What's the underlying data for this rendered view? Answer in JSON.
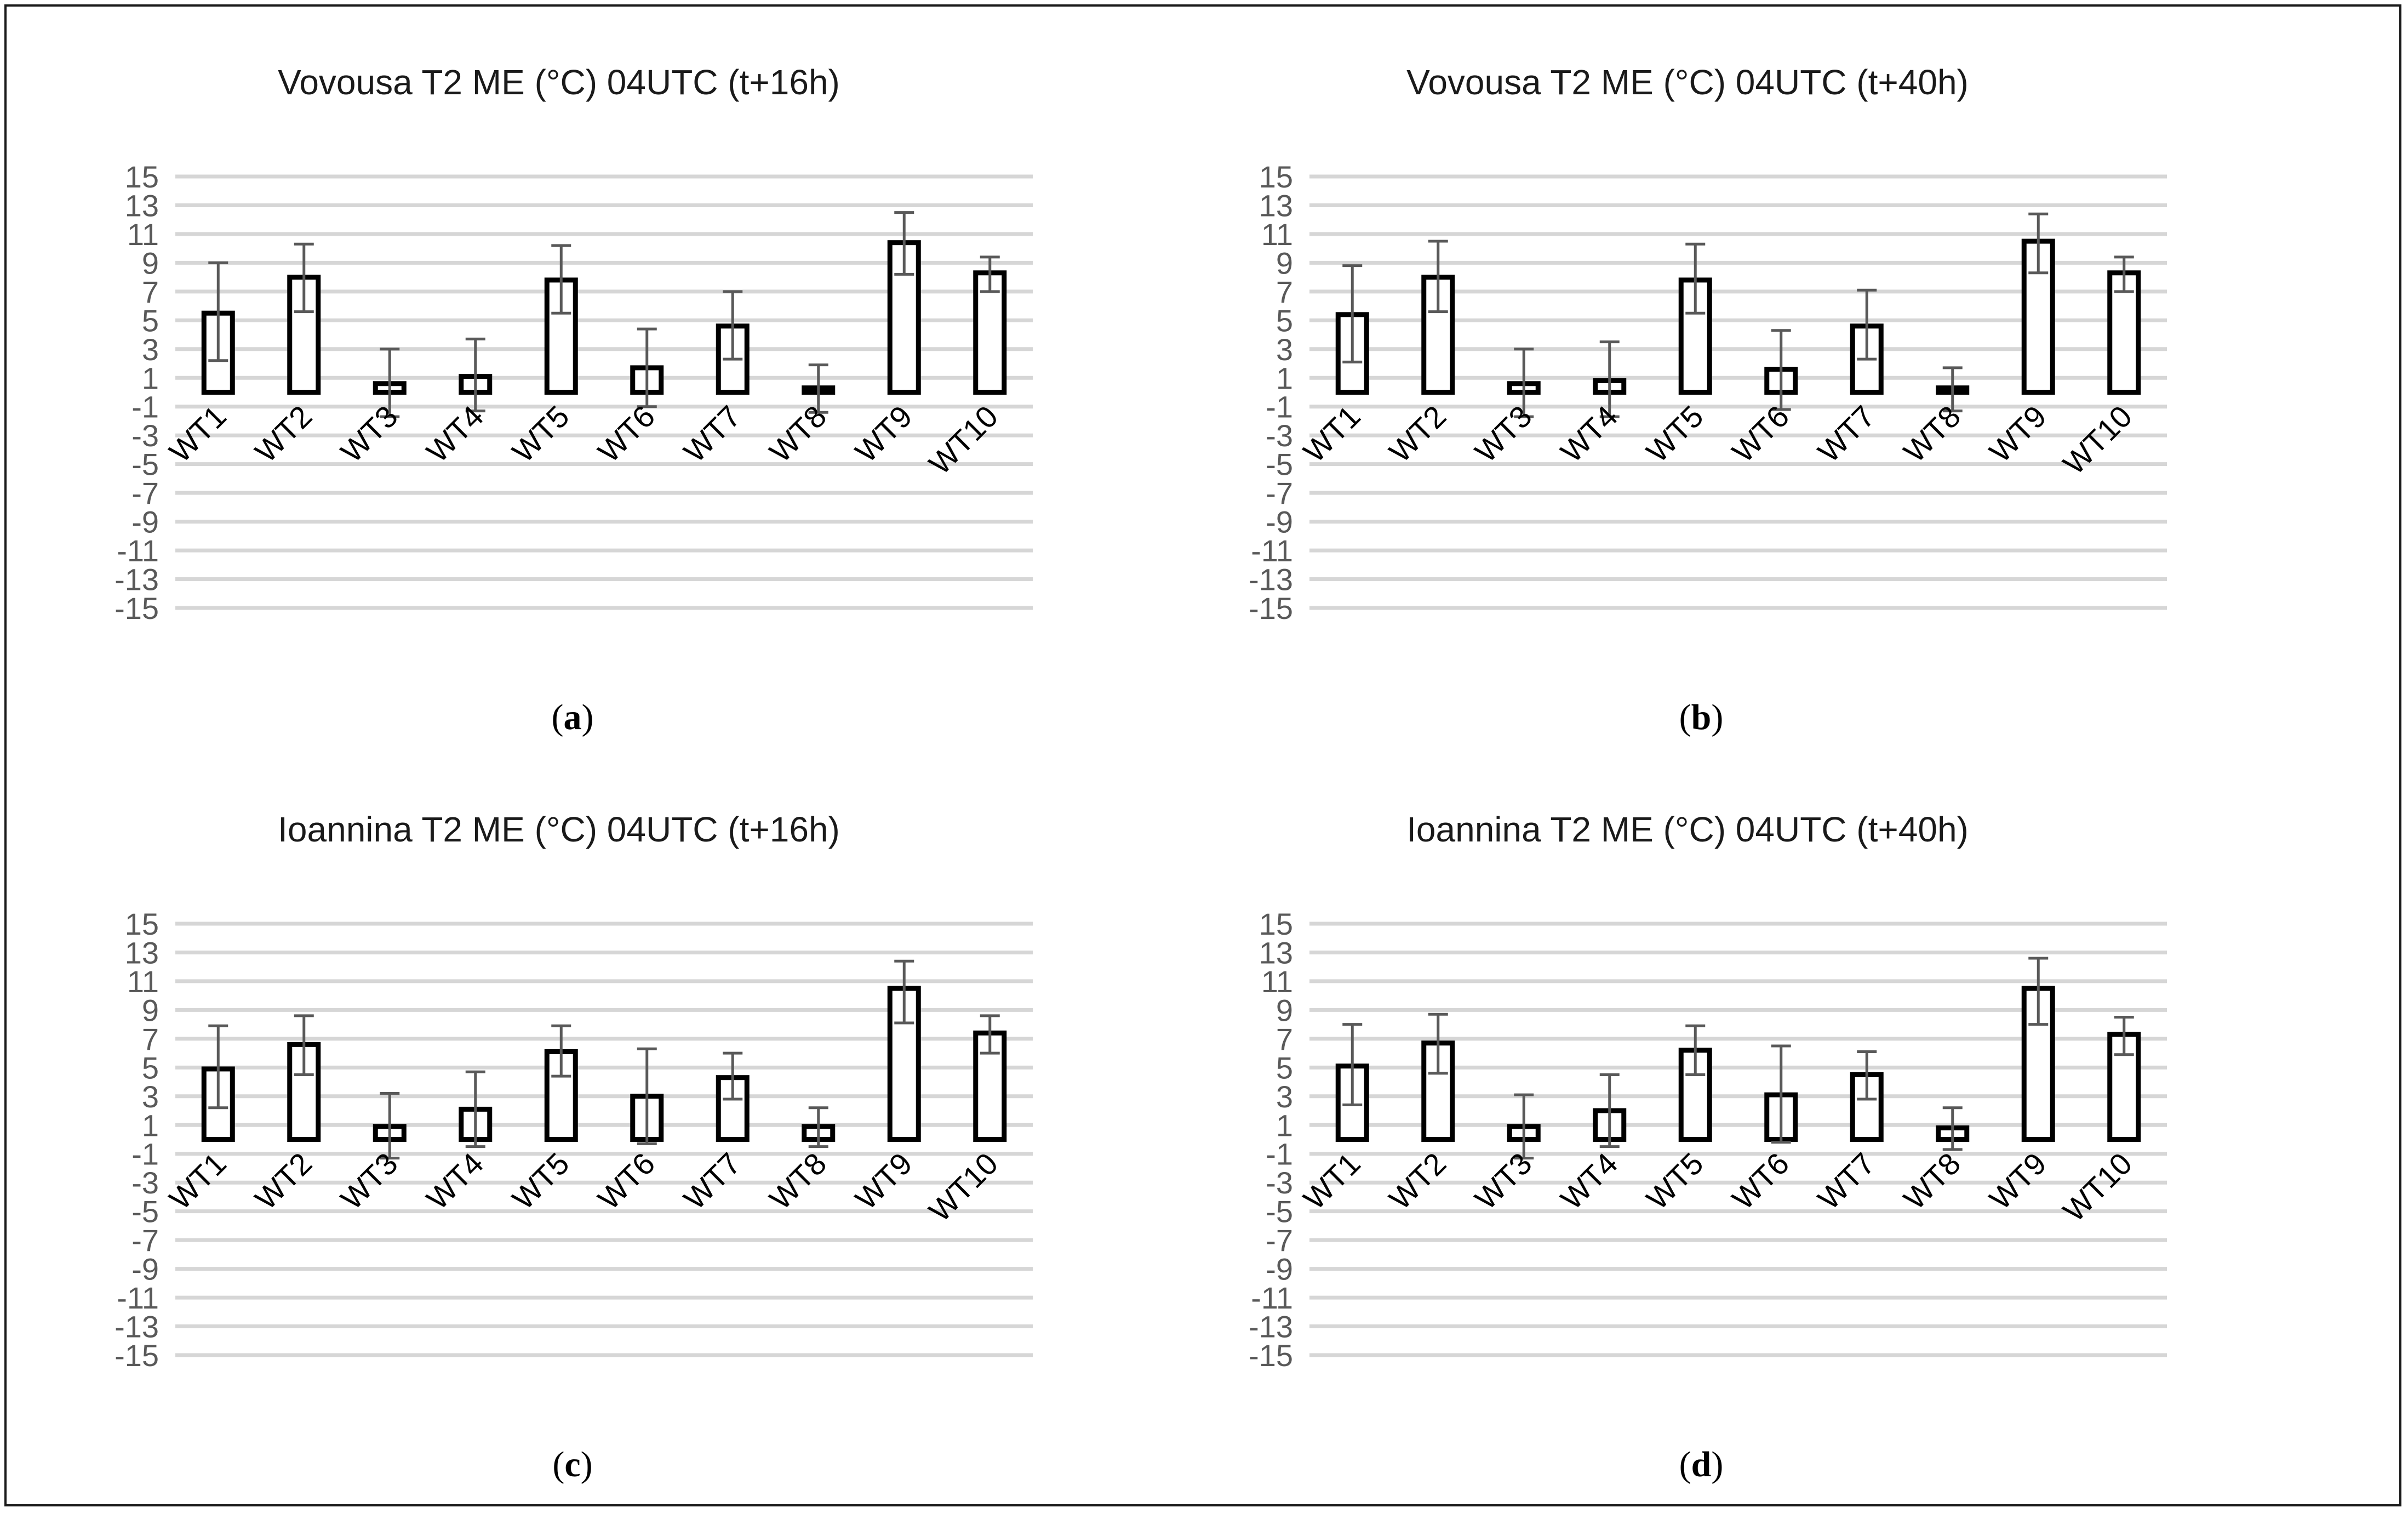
{
  "chart_data": [
    {
      "type": "bar",
      "panel": "(a)",
      "panel_letter": "a",
      "title": "Vovousa T2 ME (°C) 04UTC (t+16h)",
      "categories": [
        "WT1",
        "WT2",
        "WT3",
        "WT4",
        "WT5",
        "WT6",
        "WT7",
        "WT8",
        "WT9",
        "WT10"
      ],
      "values": [
        5.5,
        8.0,
        0.6,
        1.1,
        7.8,
        1.7,
        4.6,
        0.3,
        10.4,
        8.3
      ],
      "error_low": [
        2.2,
        5.6,
        -1.7,
        -1.3,
        5.5,
        -1.0,
        2.3,
        -1.4,
        8.2,
        7.0
      ],
      "error_high": [
        9.0,
        10.3,
        3.0,
        3.7,
        10.2,
        4.4,
        7.0,
        1.9,
        12.5,
        9.4
      ],
      "ylim": [
        -15,
        15
      ],
      "yticks": [
        "15",
        "13",
        "11",
        "9",
        "7",
        "5",
        "3",
        "1",
        "-1",
        "-3",
        "-5",
        "-7",
        "-9",
        "-11",
        "-13",
        "-15"
      ],
      "grid": true,
      "xlabel": "",
      "ylabel": ""
    },
    {
      "type": "bar",
      "panel": "(b)",
      "panel_letter": "b",
      "title": "Vovousa T2 ME (°C) 04UTC (t+40h)",
      "categories": [
        "WT1",
        "WT2",
        "WT3",
        "WT4",
        "WT5",
        "WT6",
        "WT7",
        "WT8",
        "WT9",
        "WT10"
      ],
      "values": [
        5.4,
        8.0,
        0.6,
        0.8,
        7.8,
        1.6,
        4.6,
        0.3,
        10.5,
        8.3
      ],
      "error_low": [
        2.1,
        5.6,
        -1.7,
        -1.7,
        5.5,
        -1.2,
        2.3,
        -1.3,
        8.3,
        7.0
      ],
      "error_high": [
        8.8,
        10.5,
        3.0,
        3.5,
        10.3,
        4.3,
        7.1,
        1.7,
        12.4,
        9.4
      ],
      "ylim": [
        -15,
        15
      ],
      "yticks": [
        "15",
        "13",
        "11",
        "9",
        "7",
        "5",
        "3",
        "1",
        "-1",
        "-3",
        "-5",
        "-7",
        "-9",
        "-11",
        "-13",
        "-15"
      ],
      "grid": true,
      "xlabel": "",
      "ylabel": ""
    },
    {
      "type": "bar",
      "panel": "(c)",
      "panel_letter": "c",
      "title": "Ioannina T2 ME (°C) 04UTC (t+16h)",
      "categories": [
        "WT1",
        "WT2",
        "WT3",
        "WT4",
        "WT5",
        "WT6",
        "WT7",
        "WT8",
        "WT9",
        "WT10"
      ],
      "values": [
        4.9,
        6.6,
        0.9,
        2.1,
        6.1,
        3.0,
        4.3,
        0.9,
        10.5,
        7.4
      ],
      "error_low": [
        2.2,
        4.5,
        -1.3,
        -0.5,
        4.4,
        -0.3,
        2.8,
        -0.5,
        8.1,
        6.0
      ],
      "error_high": [
        7.9,
        8.6,
        3.2,
        4.7,
        7.9,
        6.3,
        6.0,
        2.2,
        12.4,
        8.6
      ],
      "ylim": [
        -15,
        15
      ],
      "yticks": [
        "15",
        "13",
        "11",
        "9",
        "7",
        "5",
        "3",
        "1",
        "-1",
        "-3",
        "-5",
        "-7",
        "-9",
        "-11",
        "-13",
        "-15"
      ],
      "grid": true,
      "xlabel": "",
      "ylabel": ""
    },
    {
      "type": "bar",
      "panel": "(d)",
      "panel_letter": "d",
      "title": "Ioannina T2 ME (°C) 04UTC (t+40h)",
      "categories": [
        "WT1",
        "WT2",
        "WT3",
        "WT4",
        "WT5",
        "WT6",
        "WT7",
        "WT8",
        "WT9",
        "WT10"
      ],
      "values": [
        5.1,
        6.7,
        0.9,
        2.0,
        6.2,
        3.1,
        4.5,
        0.8,
        10.5,
        7.3
      ],
      "error_low": [
        2.4,
        4.6,
        -1.3,
        -0.5,
        4.5,
        -0.2,
        2.8,
        -0.7,
        8.0,
        5.9
      ],
      "error_high": [
        8.0,
        8.7,
        3.1,
        4.5,
        7.9,
        6.5,
        6.1,
        2.2,
        12.6,
        8.5
      ],
      "ylim": [
        -15,
        15
      ],
      "yticks": [
        "15",
        "13",
        "11",
        "9",
        "7",
        "5",
        "3",
        "1",
        "-1",
        "-3",
        "-5",
        "-7",
        "-9",
        "-11",
        "-13",
        "-15"
      ],
      "grid": true,
      "xlabel": "",
      "ylabel": ""
    }
  ]
}
